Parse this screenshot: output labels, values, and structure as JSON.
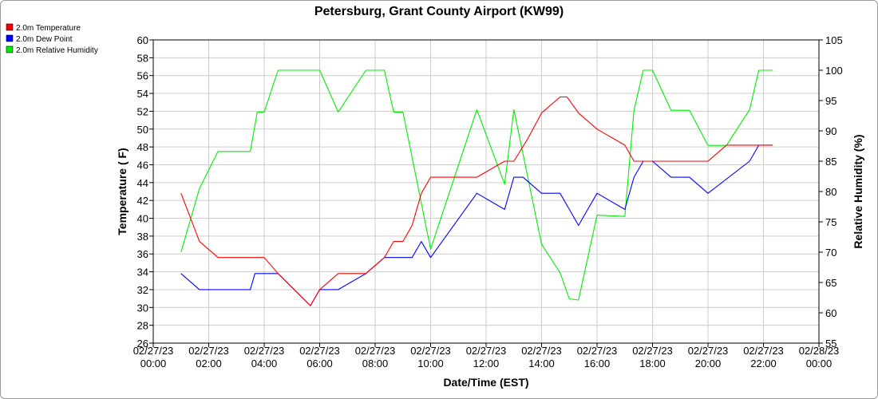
{
  "chart_data": {
    "type": "line",
    "title": "Petersburg, Grant County Airport (KW99)",
    "xlabel": "Date/Time (EST)",
    "ylabel_left": "Temperature ( F)",
    "ylabel_right": "Relative Humidity (%)",
    "y_left_lim": [
      26,
      60
    ],
    "y_left_ticks": [
      26,
      28,
      30,
      32,
      34,
      36,
      38,
      40,
      42,
      44,
      46,
      48,
      50,
      52,
      54,
      56,
      58,
      60
    ],
    "y_right_lim": [
      55,
      105
    ],
    "y_right_ticks": [
      55,
      60,
      65,
      70,
      75,
      80,
      85,
      90,
      95,
      100,
      105
    ],
    "x_ticks": [
      {
        "date": "02/27/23",
        "time": "00:00"
      },
      {
        "date": "02/27/23",
        "time": "02:00"
      },
      {
        "date": "02/27/23",
        "time": "04:00"
      },
      {
        "date": "02/27/23",
        "time": "06:00"
      },
      {
        "date": "02/27/23",
        "time": "08:00"
      },
      {
        "date": "02/27/23",
        "time": "10:00"
      },
      {
        "date": "02/27/23",
        "time": "12:00"
      },
      {
        "date": "02/27/23",
        "time": "14:00"
      },
      {
        "date": "02/27/23",
        "time": "16:00"
      },
      {
        "date": "02/27/23",
        "time": "18:00"
      },
      {
        "date": "02/27/23",
        "time": "20:00"
      },
      {
        "date": "02/27/23",
        "time": "22:00"
      },
      {
        "date": "02/28/23",
        "time": "00:00"
      }
    ],
    "grid": true,
    "legend_position": "top-left",
    "series": [
      {
        "name": "2.0m Temperature",
        "color": "#ff0000",
        "axis": "left",
        "points": [
          [
            "02/27/23 01:00",
            42.8
          ],
          [
            "02/27/23 01:40",
            37.4
          ],
          [
            "02/27/23 02:20",
            35.6
          ],
          [
            "02/27/23 03:00",
            35.6
          ],
          [
            "02/27/23 03:40",
            35.6
          ],
          [
            "02/27/23 04:00",
            35.6
          ],
          [
            "02/27/23 04:30",
            33.8
          ],
          [
            "02/27/23 05:40",
            30.2
          ],
          [
            "02/27/23 06:00",
            32.0
          ],
          [
            "02/27/23 06:40",
            33.8
          ],
          [
            "02/27/23 07:40",
            33.8
          ],
          [
            "02/27/23 08:20",
            35.6
          ],
          [
            "02/27/23 08:40",
            37.4
          ],
          [
            "02/27/23 09:00",
            37.4
          ],
          [
            "02/27/23 09:20",
            39.2
          ],
          [
            "02/27/23 09:40",
            42.8
          ],
          [
            "02/27/23 10:00",
            44.6
          ],
          [
            "02/27/23 11:40",
            44.6
          ],
          [
            "02/27/23 12:40",
            46.4
          ],
          [
            "02/27/23 13:00",
            46.4
          ],
          [
            "02/27/23 13:30",
            48.9
          ],
          [
            "02/27/23 14:00",
            51.8
          ],
          [
            "02/27/23 14:40",
            53.6
          ],
          [
            "02/27/23 14:55",
            53.6
          ],
          [
            "02/27/23 15:20",
            51.8
          ],
          [
            "02/27/23 16:00",
            50.0
          ],
          [
            "02/27/23 17:00",
            48.2
          ],
          [
            "02/27/23 17:20",
            46.4
          ],
          [
            "02/27/23 18:00",
            46.4
          ],
          [
            "02/27/23 19:00",
            46.4
          ],
          [
            "02/27/23 20:00",
            46.4
          ],
          [
            "02/27/23 20:40",
            48.2
          ],
          [
            "02/27/23 22:20",
            48.2
          ]
        ]
      },
      {
        "name": "2.0m Dew Point",
        "color": "#0000ff",
        "axis": "left",
        "points": [
          [
            "02/27/23 01:00",
            33.8
          ],
          [
            "02/27/23 01:40",
            32.0
          ],
          [
            "02/27/23 02:20",
            32.0
          ],
          [
            "02/27/23 03:00",
            32.0
          ],
          [
            "02/27/23 03:30",
            32.0
          ],
          [
            "02/27/23 03:40",
            33.8
          ],
          [
            "02/27/23 04:30",
            33.8
          ],
          [
            "02/27/23 05:40",
            30.2
          ],
          [
            "02/27/23 06:00",
            32.0
          ],
          [
            "02/27/23 06:40",
            32.0
          ],
          [
            "02/27/23 07:40",
            33.8
          ],
          [
            "02/27/23 08:20",
            35.6
          ],
          [
            "02/27/23 09:20",
            35.6
          ],
          [
            "02/27/23 09:40",
            37.4
          ],
          [
            "02/27/23 10:00",
            35.6
          ],
          [
            "02/27/23 11:40",
            42.8
          ],
          [
            "02/27/23 12:40",
            41.0
          ],
          [
            "02/27/23 13:00",
            44.6
          ],
          [
            "02/27/23 13:20",
            44.6
          ],
          [
            "02/27/23 14:00",
            42.8
          ],
          [
            "02/27/23 14:40",
            42.8
          ],
          [
            "02/27/23 15:00",
            41.0
          ],
          [
            "02/27/23 15:20",
            39.2
          ],
          [
            "02/27/23 16:00",
            42.8
          ],
          [
            "02/27/23 17:00",
            41.0
          ],
          [
            "02/27/23 17:20",
            44.6
          ],
          [
            "02/27/23 17:40",
            46.4
          ],
          [
            "02/27/23 18:00",
            46.4
          ],
          [
            "02/27/23 18:40",
            44.6
          ],
          [
            "02/27/23 19:20",
            44.6
          ],
          [
            "02/27/23 20:00",
            42.8
          ],
          [
            "02/27/23 21:30",
            46.4
          ],
          [
            "02/27/23 21:50",
            48.2
          ],
          [
            "02/27/23 22:20",
            48.2
          ]
        ]
      },
      {
        "name": "2.0m Relative Humidity",
        "color": "#00ee00",
        "axis": "right",
        "points": [
          [
            "02/27/23 01:00",
            70.0
          ],
          [
            "02/27/23 01:40",
            80.5
          ],
          [
            "02/27/23 02:20",
            86.6
          ],
          [
            "02/27/23 03:00",
            86.6
          ],
          [
            "02/27/23 03:30",
            86.6
          ],
          [
            "02/27/23 03:45",
            93.1
          ],
          [
            "02/27/23 04:00",
            93.1
          ],
          [
            "02/27/23 04:30",
            100
          ],
          [
            "02/27/23 06:00",
            100
          ],
          [
            "02/27/23 06:40",
            93.1
          ],
          [
            "02/27/23 07:40",
            100
          ],
          [
            "02/27/23 08:20",
            100
          ],
          [
            "02/27/23 08:40",
            93.1
          ],
          [
            "02/27/23 09:00",
            93.1
          ],
          [
            "02/27/23 10:00",
            70.5
          ],
          [
            "02/27/23 11:40",
            93.5
          ],
          [
            "02/27/23 12:40",
            81.2
          ],
          [
            "02/27/23 13:00",
            93.5
          ],
          [
            "02/27/23 14:00",
            71.3
          ],
          [
            "02/27/23 14:40",
            66.6
          ],
          [
            "02/27/23 15:00",
            62.3
          ],
          [
            "02/27/23 15:20",
            62.1
          ],
          [
            "02/27/23 16:00",
            76.1
          ],
          [
            "02/27/23 17:00",
            75.9
          ],
          [
            "02/27/23 17:20",
            93.4
          ],
          [
            "02/27/23 17:40",
            100
          ],
          [
            "02/27/23 18:00",
            100
          ],
          [
            "02/27/23 18:40",
            93.4
          ],
          [
            "02/27/23 19:20",
            93.4
          ],
          [
            "02/27/23 20:00",
            87.6
          ],
          [
            "02/27/23 20:40",
            87.6
          ],
          [
            "02/27/23 21:30",
            93.5
          ],
          [
            "02/27/23 21:50",
            100
          ],
          [
            "02/27/23 22:20",
            100
          ]
        ]
      }
    ]
  }
}
